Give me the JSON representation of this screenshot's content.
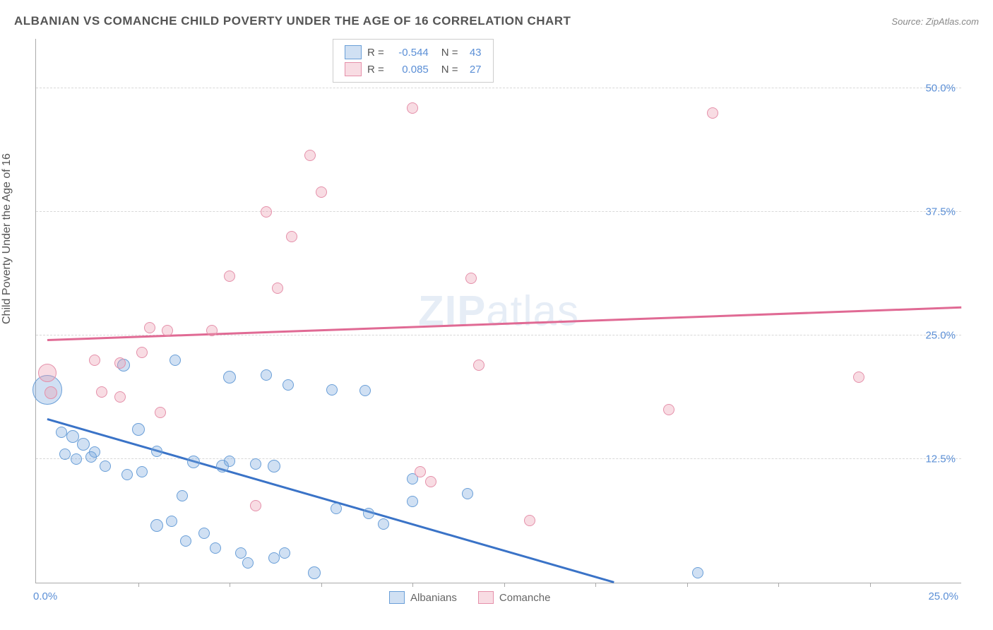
{
  "header": {
    "title": "ALBANIAN VS COMANCHE CHILD POVERTY UNDER THE AGE OF 16 CORRELATION CHART",
    "source_label": "Source:",
    "source_name": "ZipAtlas.com"
  },
  "axes": {
    "y_label": "Child Poverty Under the Age of 16",
    "y_ticks": [
      {
        "value": 12.5,
        "label": "12.5%"
      },
      {
        "value": 25.0,
        "label": "25.0%"
      },
      {
        "value": 37.5,
        "label": "37.5%"
      },
      {
        "value": 50.0,
        "label": "50.0%"
      }
    ],
    "x_min_label": "0.0%",
    "x_max_label": "25.0%",
    "x_tick_positions": [
      2.5,
      5,
      7.5,
      10,
      12.5,
      15,
      17.5,
      20,
      22.5
    ],
    "xlim": [
      -0.3,
      25.0
    ],
    "ylim": [
      0,
      55
    ]
  },
  "watermark": {
    "zip": "ZIP",
    "atlas": "atlas"
  },
  "series": [
    {
      "name": "Albanians",
      "color_fill": "rgba(120, 165, 220, 0.35)",
      "color_stroke": "#6a9fd8",
      "R": "-0.544",
      "N": "43",
      "trend": {
        "x1": 0,
        "y1": 16.5,
        "x2": 15.5,
        "y2": 0,
        "color": "#3a73c7"
      },
      "points": [
        {
          "x": 0.0,
          "y": 19.5,
          "r": 20
        },
        {
          "x": 1.0,
          "y": 14.0,
          "r": 8
        },
        {
          "x": 0.7,
          "y": 14.8,
          "r": 8
        },
        {
          "x": 0.5,
          "y": 13.0,
          "r": 7
        },
        {
          "x": 1.3,
          "y": 13.2,
          "r": 7
        },
        {
          "x": 0.4,
          "y": 15.2,
          "r": 7
        },
        {
          "x": 0.8,
          "y": 12.5,
          "r": 7
        },
        {
          "x": 1.6,
          "y": 11.8,
          "r": 7
        },
        {
          "x": 1.2,
          "y": 12.7,
          "r": 7
        },
        {
          "x": 2.1,
          "y": 22.0,
          "r": 8
        },
        {
          "x": 2.2,
          "y": 10.9,
          "r": 7
        },
        {
          "x": 2.5,
          "y": 15.5,
          "r": 8
        },
        {
          "x": 2.6,
          "y": 11.2,
          "r": 7
        },
        {
          "x": 3.0,
          "y": 13.3,
          "r": 7
        },
        {
          "x": 3.0,
          "y": 5.8,
          "r": 8
        },
        {
          "x": 3.4,
          "y": 6.2,
          "r": 7
        },
        {
          "x": 3.5,
          "y": 22.5,
          "r": 7
        },
        {
          "x": 3.7,
          "y": 8.8,
          "r": 7
        },
        {
          "x": 3.8,
          "y": 4.2,
          "r": 7
        },
        {
          "x": 4.0,
          "y": 12.2,
          "r": 8
        },
        {
          "x": 4.3,
          "y": 5.0,
          "r": 7
        },
        {
          "x": 4.6,
          "y": 3.5,
          "r": 7
        },
        {
          "x": 4.8,
          "y": 11.8,
          "r": 8
        },
        {
          "x": 5.0,
          "y": 12.3,
          "r": 7
        },
        {
          "x": 5.0,
          "y": 20.8,
          "r": 8
        },
        {
          "x": 5.3,
          "y": 3.0,
          "r": 7
        },
        {
          "x": 5.5,
          "y": 2.0,
          "r": 7
        },
        {
          "x": 5.7,
          "y": 12.0,
          "r": 7
        },
        {
          "x": 6.0,
          "y": 21.0,
          "r": 7
        },
        {
          "x": 6.2,
          "y": 2.5,
          "r": 7
        },
        {
          "x": 6.2,
          "y": 11.8,
          "r": 8
        },
        {
          "x": 6.5,
          "y": 3.0,
          "r": 7
        },
        {
          "x": 6.6,
          "y": 20.0,
          "r": 7
        },
        {
          "x": 7.3,
          "y": 1.0,
          "r": 8
        },
        {
          "x": 7.8,
          "y": 19.5,
          "r": 7
        },
        {
          "x": 7.9,
          "y": 7.5,
          "r": 7
        },
        {
          "x": 8.7,
          "y": 19.4,
          "r": 7
        },
        {
          "x": 8.8,
          "y": 7.0,
          "r": 7
        },
        {
          "x": 9.2,
          "y": 5.9,
          "r": 7
        },
        {
          "x": 10.0,
          "y": 10.5,
          "r": 7
        },
        {
          "x": 10.0,
          "y": 8.2,
          "r": 7
        },
        {
          "x": 11.5,
          "y": 9.0,
          "r": 7
        },
        {
          "x": 17.8,
          "y": 1.0,
          "r": 7
        }
      ]
    },
    {
      "name": "Comanche",
      "color_fill": "rgba(235, 155, 175, 0.35)",
      "color_stroke": "#e590aa",
      "R": "0.085",
      "N": "27",
      "trend": {
        "x1": 0,
        "y1": 24.5,
        "x2": 25,
        "y2": 27.8,
        "color": "#e06a94"
      },
      "points": [
        {
          "x": 0.0,
          "y": 21.2,
          "r": 12
        },
        {
          "x": 0.1,
          "y": 19.2,
          "r": 8
        },
        {
          "x": 1.3,
          "y": 22.5,
          "r": 7
        },
        {
          "x": 1.5,
          "y": 19.3,
          "r": 7
        },
        {
          "x": 2.0,
          "y": 22.2,
          "r": 7
        },
        {
          "x": 2.0,
          "y": 18.8,
          "r": 7
        },
        {
          "x": 2.6,
          "y": 23.3,
          "r": 7
        },
        {
          "x": 2.8,
          "y": 25.8,
          "r": 7
        },
        {
          "x": 3.1,
          "y": 17.2,
          "r": 7
        },
        {
          "x": 3.3,
          "y": 25.5,
          "r": 7
        },
        {
          "x": 4.5,
          "y": 25.5,
          "r": 7
        },
        {
          "x": 5.0,
          "y": 31.0,
          "r": 7
        },
        {
          "x": 5.7,
          "y": 7.8,
          "r": 7
        },
        {
          "x": 6.0,
          "y": 37.5,
          "r": 7
        },
        {
          "x": 6.3,
          "y": 29.8,
          "r": 7
        },
        {
          "x": 6.7,
          "y": 35.0,
          "r": 7
        },
        {
          "x": 7.2,
          "y": 43.2,
          "r": 7
        },
        {
          "x": 7.5,
          "y": 39.5,
          "r": 7
        },
        {
          "x": 10.0,
          "y": 48.0,
          "r": 7
        },
        {
          "x": 10.2,
          "y": 11.2,
          "r": 7
        },
        {
          "x": 10.5,
          "y": 10.2,
          "r": 7
        },
        {
          "x": 11.6,
          "y": 30.8,
          "r": 7
        },
        {
          "x": 11.8,
          "y": 22.0,
          "r": 7
        },
        {
          "x": 13.2,
          "y": 6.3,
          "r": 7
        },
        {
          "x": 17.0,
          "y": 17.5,
          "r": 7
        },
        {
          "x": 18.2,
          "y": 47.5,
          "r": 7
        },
        {
          "x": 22.2,
          "y": 20.8,
          "r": 7
        }
      ]
    }
  ],
  "legend": {
    "items": [
      {
        "label": "Albanians",
        "fill": "rgba(120,165,220,0.35)",
        "stroke": "#6a9fd8"
      },
      {
        "label": "Comanche",
        "fill": "rgba(235,155,175,0.35)",
        "stroke": "#e590aa"
      }
    ]
  }
}
